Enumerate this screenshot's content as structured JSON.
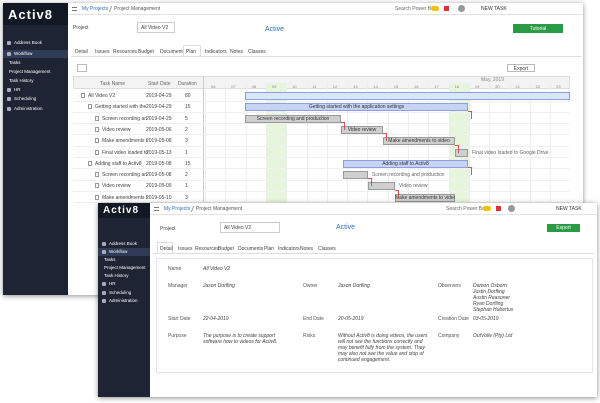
{
  "back_window": {
    "logo": "Activ8",
    "sidebar": [
      "Address Book",
      "Workflow",
      "Tasks",
      "Project Management",
      "Task History",
      "HR",
      "Scheduling",
      "Administration"
    ],
    "breadcrumb": [
      "My Projects",
      "Project Management"
    ],
    "search": "Search Power Base",
    "new_task": "NEW TASK",
    "project_label": "Project",
    "project": "All Video V2",
    "status": "Active",
    "tutorial": "Tutorial",
    "tabs": [
      "Detail",
      "Issues",
      "Resources",
      "Budget",
      "Documents",
      "Plan",
      "Indicators",
      "Notes",
      "Classes"
    ],
    "export": "Export",
    "gantt": {
      "columns": [
        "Task Name",
        "Start Date",
        "Duration"
      ],
      "month": "May, 2019",
      "days": [
        "06",
        "07",
        "08",
        "09",
        "10",
        "11",
        "12",
        "13",
        "14",
        "15",
        "16",
        "17",
        "18",
        "19",
        "20",
        "21",
        "22",
        "23"
      ],
      "rows": [
        [
          "All Video V2",
          "2019-04-29",
          "80"
        ],
        [
          "Getting started with the",
          "2019-04-29",
          "15"
        ],
        [
          "Screen recording an",
          "2019-04-29",
          "5"
        ],
        [
          "Video review",
          "2019-05-06",
          "2"
        ],
        [
          "Make amendments t",
          "2019-05-08",
          "3"
        ],
        [
          "Final video loaded to",
          "2019-05-13",
          "1"
        ],
        [
          "Adding staff to Activ8",
          "2019-05-08",
          "15"
        ],
        [
          "Screen recording an",
          "2019-05-08",
          "2"
        ],
        [
          "Video review",
          "2019-05-09",
          "1"
        ],
        [
          "Make amendments t",
          "2019-05-10",
          "3"
        ]
      ],
      "bar_labels": [
        null,
        "Getting started with the application settings",
        "Screen recording and production",
        "Video review",
        "Make amendments to video",
        "Final video loaded to Google Drive",
        "Adding staff to Activ8",
        "Screen recording and production",
        "Video review",
        "Make amendments to video"
      ]
    }
  },
  "front_window": {
    "logo": "Activ8",
    "sidebar": [
      "Address Book",
      "Workflow",
      "Tasks",
      "Project Management",
      "Task History",
      "HR",
      "Scheduling",
      "Administration"
    ],
    "breadcrumb": [
      "My Projects",
      "Project Management"
    ],
    "search": "Search Power Base",
    "new_task": "NEW TASK",
    "project_label": "Project",
    "project": "All Video V2",
    "status": "Active",
    "export": "Export",
    "tabs": [
      "Detail",
      "Issues",
      "Resources",
      "Budget",
      "Documents",
      "Plan",
      "Indicators",
      "Notes",
      "Classes"
    ],
    "detail": {
      "name": {
        "label": "Name",
        "value": "All Video V2"
      },
      "manager": {
        "label": "Manager",
        "value": "Jason Dorfling"
      },
      "owner": {
        "label": "Owner",
        "value": "Jason Dorfling"
      },
      "observers": {
        "label": "Observers",
        "value": [
          "Damon Osborn",
          "Justin Dorfling",
          "Austin Reasoner",
          "Ryan Dorfling",
          "Stephan Hubertus"
        ]
      },
      "start_date": {
        "label": "Start Date",
        "value": "22-04-2019"
      },
      "end_date": {
        "label": "End Date",
        "value": "20-05-2019"
      },
      "creation_date": {
        "label": "Creation Date",
        "value": "03-05-2019"
      },
      "purpose": {
        "label": "Purpose",
        "value": "The purpose is to create support software how to videos for Activ8."
      },
      "risks": {
        "label": "Risks",
        "value": "Without Activ8 is doing videos, the users will not see the functions correctly and may benefit fully from the system. They may also not see the value and stop of continued engagement."
      },
      "company": {
        "label": "Company",
        "value": "OutVoile (Pty) Ltd"
      }
    }
  }
}
